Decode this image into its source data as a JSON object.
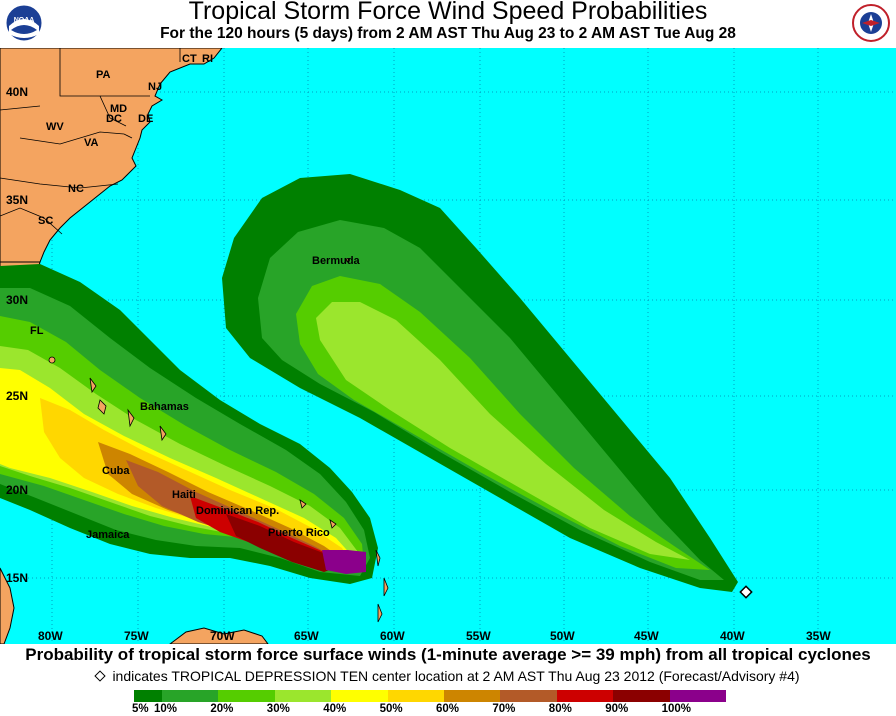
{
  "header": {
    "title": "Tropical Storm Force Wind Speed Probabilities",
    "subtitle": "For the 120 hours (5 days) from 2 AM AST Thu Aug 23 to 2 AM AST Tue Aug 28",
    "left_logo": "NOAA",
    "right_logo": "NATIONAL WEATHER SERVICE"
  },
  "map": {
    "ocean_color": "#00ffff",
    "land_color": "#f4a460",
    "lat_labels": [
      "40N",
      "35N",
      "30N",
      "25N",
      "20N",
      "15N"
    ],
    "lon_labels": [
      "80W",
      "75W",
      "70W",
      "65W",
      "60W",
      "55W",
      "50W",
      "45W",
      "40W",
      "35W"
    ],
    "place_labels": [
      "PA",
      "NJ",
      "CT",
      "RI",
      "MD",
      "DC",
      "DE",
      "WV",
      "VA",
      "NC",
      "SC",
      "FL",
      "Bahamas",
      "Cuba",
      "Haiti",
      "Jamaica",
      "Dominican Rep.",
      "Puerto Rico",
      "Bermuda"
    ],
    "storm_marker": "TROPICAL DEPRESSION TEN center location"
  },
  "footer": {
    "caption": "Probability of tropical storm force surface winds (1-minute average >= 39 mph) from all tropical cyclones",
    "note": "indicates TROPICAL DEPRESSION TEN center location at 2 AM AST Thu Aug 23 2012 (Forecast/Advisory #4)"
  },
  "legend": {
    "colors": [
      "#008000",
      "#28a428",
      "#55cd00",
      "#9be62d",
      "#ffff00",
      "#ffd700",
      "#cd8500",
      "#b35a28",
      "#cd0000",
      "#8b0000",
      "#8b008b"
    ],
    "tick_labels": [
      "5%",
      "10%",
      "20%",
      "30%",
      "40%",
      "50%",
      "60%",
      "70%",
      "80%",
      "90%",
      "100%"
    ]
  }
}
